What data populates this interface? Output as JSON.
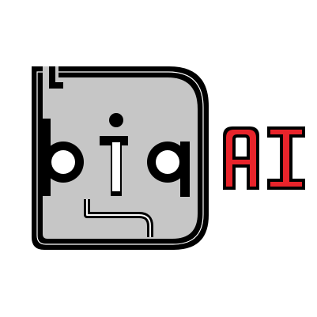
{
  "logo": {
    "word_lower": "big",
    "word_upper": "AI",
    "colors": {
      "face_fill": "#c6c6c6",
      "outline": "#000000",
      "accent": "#e8242b",
      "background": "#ffffff"
    },
    "icon": "robot-face-icon"
  }
}
